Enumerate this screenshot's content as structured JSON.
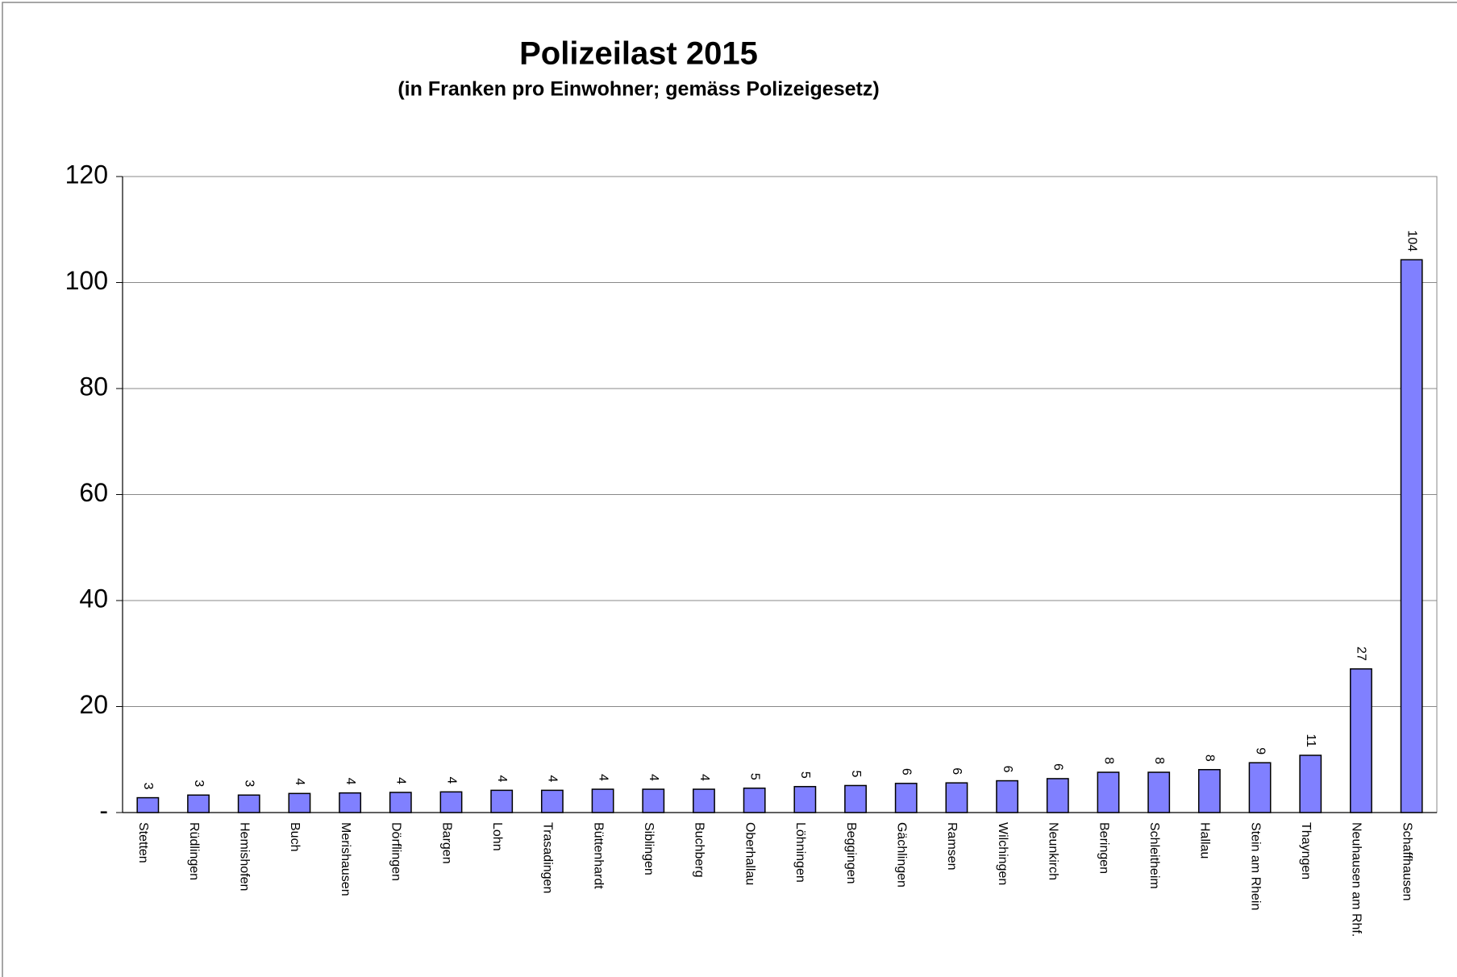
{
  "chart_data": {
    "type": "bar",
    "title": "Polizeilast 2015",
    "subtitle": "(in Franken pro Einwohner; gemäss Polizeigesetz)",
    "categories": [
      "Stetten",
      "Rüdlingen",
      "Hemishofen",
      "Buch",
      "Merishausen",
      "Dörflingen",
      "Bargen",
      "Lohn",
      "Trasadingen",
      "Büttenhardt",
      "Siblingen",
      "Buchberg",
      "Oberhallau",
      "Löhningen",
      "Beggingen",
      "Gächlingen",
      "Ramsen",
      "Wilchingen",
      "Neunkirch",
      "Beringen",
      "Schleitheim",
      "Hallau",
      "Stein am Rhein",
      "Thayngen",
      "Neuhausen am Rhf.",
      "Schaffhausen"
    ],
    "values": [
      2.8,
      3.3,
      3.3,
      3.6,
      3.7,
      3.8,
      3.9,
      4.2,
      4.2,
      4.4,
      4.4,
      4.4,
      4.6,
      4.9,
      5.1,
      5.5,
      5.6,
      6.0,
      6.4,
      7.6,
      7.6,
      8.1,
      9.4,
      10.8,
      27.1,
      104.3
    ],
    "value_labels": [
      "3",
      "3",
      "3",
      "4",
      "4",
      "4",
      "4",
      "4",
      "4",
      "4",
      "4",
      "4",
      "5",
      "5",
      "5",
      "6",
      "6",
      "6",
      "6",
      "8",
      "8",
      "8",
      "9",
      "11",
      "27",
      "104"
    ],
    "color": "#8080ff",
    "ylim": [
      0,
      120
    ],
    "yticks": [
      {
        "value": 0,
        "label": "-"
      },
      20,
      40,
      60,
      80,
      100,
      120
    ],
    "grid": true
  }
}
